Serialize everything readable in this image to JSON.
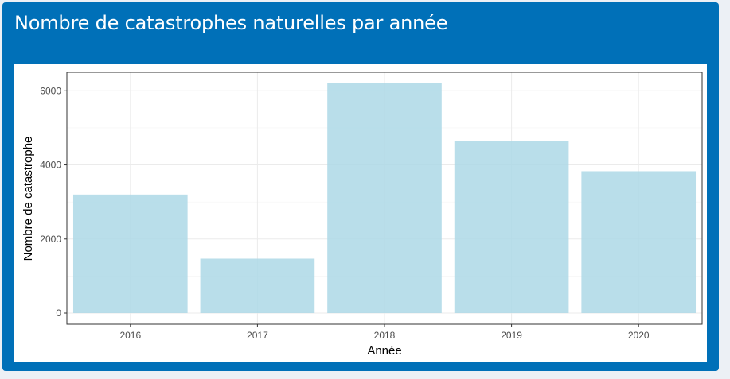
{
  "box": {
    "title": "Nombre de catastrophes naturelles par année",
    "header_color": "#0070b8"
  },
  "chart_data": {
    "type": "bar",
    "categories": [
      "2016",
      "2017",
      "2018",
      "2019",
      "2020"
    ],
    "values": [
      3200,
      1470,
      6200,
      4650,
      3830
    ],
    "xlabel": "Année",
    "ylabel": "Nombre de catastrophe",
    "ylim": [
      -300,
      6500
    ],
    "yticks": [
      0,
      2000,
      4000,
      6000
    ],
    "ytick_labels": [
      "0",
      "2000",
      "4000",
      "6000"
    ],
    "grid": true,
    "bar_color": "#add8e6"
  }
}
